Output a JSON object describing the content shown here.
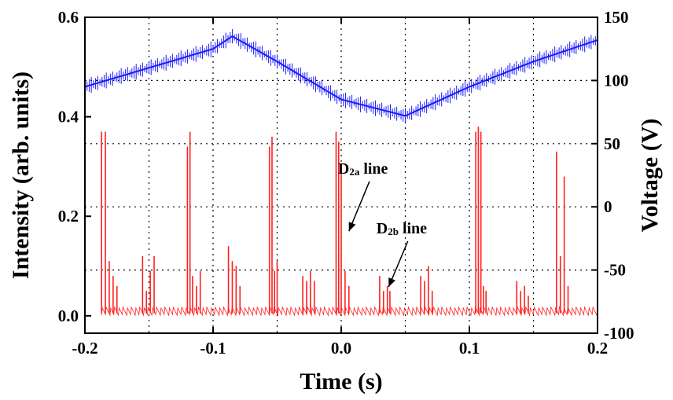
{
  "chart_data": {
    "type": "line",
    "title": "",
    "xlabel": "Time (s)",
    "ylabel": "Intensity (arb. units)",
    "y2label": "Voltage (V)",
    "xlim": [
      -0.2,
      0.2
    ],
    "ylim": [
      -0.035,
      0.6
    ],
    "y2lim": [
      -100,
      150
    ],
    "x_ticks": [
      -0.2,
      -0.1,
      0.0,
      0.1,
      0.2
    ],
    "x_tick_labels": [
      "-0.2",
      "-0.1",
      "0.0",
      "0.1",
      "0.2"
    ],
    "y_ticks": [
      0.0,
      0.2,
      0.4,
      0.6
    ],
    "y_tick_labels": [
      "0.0",
      "0.2",
      "0.4",
      "0.6"
    ],
    "y2_ticks": [
      -100,
      -50,
      0,
      50,
      100,
      150
    ],
    "y2_tick_labels": [
      "-100",
      "-50",
      "0",
      "50",
      "100",
      "150"
    ],
    "grid": "dotted",
    "colors": {
      "intensity": "#ff2020",
      "voltage": "#1a1aff"
    },
    "series": [
      {
        "axis": "right",
        "style": "error-band",
        "x": [
          -0.2,
          -0.15,
          -0.1,
          -0.085,
          -0.05,
          0.0,
          0.05,
          0.1,
          0.15,
          0.2
        ],
        "values": [
          95,
          110,
          125,
          135,
          115,
          85,
          72,
          95,
          115,
          132
        ]
      },
      {
        "axis": "left",
        "style": "spikes",
        "baseline": 0.005,
        "x": [
          -0.187,
          -0.184,
          -0.181,
          -0.178,
          -0.175,
          -0.155,
          -0.152,
          -0.149,
          -0.146,
          -0.12,
          -0.118,
          -0.116,
          -0.113,
          -0.11,
          -0.088,
          -0.085,
          -0.082,
          -0.079,
          -0.056,
          -0.054,
          -0.052,
          -0.05,
          -0.03,
          -0.027,
          -0.024,
          -0.021,
          -0.004,
          -0.002,
          0.0,
          0.003,
          0.006,
          0.03,
          0.033,
          0.036,
          0.038,
          0.062,
          0.065,
          0.068,
          0.071,
          0.105,
          0.107,
          0.109,
          0.111,
          0.113,
          0.137,
          0.14,
          0.143,
          0.146,
          0.168,
          0.171,
          0.174,
          0.177
        ],
        "values": [
          0.37,
          0.37,
          0.11,
          0.08,
          0.06,
          0.12,
          0.05,
          0.09,
          0.12,
          0.34,
          0.37,
          0.08,
          0.06,
          0.09,
          0.14,
          0.11,
          0.1,
          0.06,
          0.34,
          0.36,
          0.09,
          0.11,
          0.08,
          0.07,
          0.09,
          0.07,
          0.37,
          0.35,
          0.3,
          0.09,
          0.06,
          0.08,
          0.05,
          0.06,
          0.05,
          0.08,
          0.07,
          0.1,
          0.05,
          0.37,
          0.38,
          0.37,
          0.06,
          0.05,
          0.07,
          0.05,
          0.06,
          0.04,
          0.33,
          0.12,
          0.28,
          0.06
        ]
      }
    ],
    "annotations": [
      {
        "main": "D",
        "sub": "2a",
        "rest": " line",
        "tail": [
          0.022,
          0.27
        ],
        "head": [
          0.006,
          0.17
        ]
      },
      {
        "main": "D",
        "sub": "2b",
        "rest": " line",
        "tail": [
          0.052,
          0.15
        ],
        "head": [
          0.037,
          0.058
        ]
      }
    ]
  }
}
